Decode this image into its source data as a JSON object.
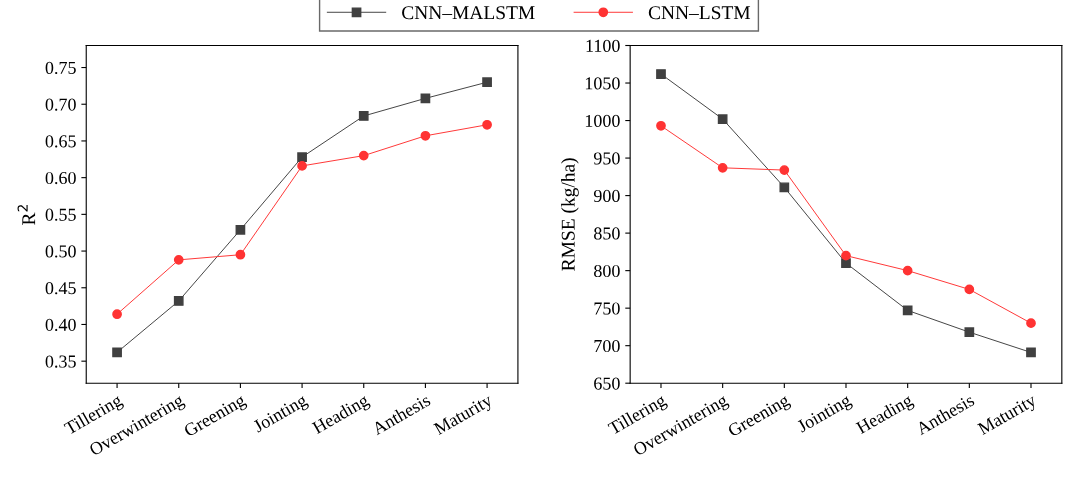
{
  "chart_data": [
    {
      "type": "line",
      "ylabel": "R$^{2}$",
      "categories": [
        "Tillering",
        "Overwintering",
        "Greening",
        "Jointing",
        "Heading",
        "Anthesis",
        "Maturity"
      ],
      "ylim": [
        0.32,
        0.78
      ],
      "yticks": [
        {
          "value": 0.35,
          "label": "0.35"
        },
        {
          "value": 0.4,
          "label": "0.40"
        },
        {
          "value": 0.45,
          "label": "0.45"
        },
        {
          "value": 0.5,
          "label": "0.50"
        },
        {
          "value": 0.55,
          "label": "0.55"
        },
        {
          "value": 0.6,
          "label": "0.60"
        },
        {
          "value": 0.65,
          "label": "0.65"
        },
        {
          "value": 0.7,
          "label": "0.70"
        },
        {
          "value": 0.75,
          "label": "0.75"
        }
      ],
      "legend": "top",
      "series": [
        {
          "name": "CNN–MALSTM",
          "color": "#404040",
          "marker": "square",
          "values": [
            0.362,
            0.432,
            0.529,
            0.628,
            0.684,
            0.708,
            0.73
          ]
        },
        {
          "name": "CNN–LSTM",
          "color": "#ff3333",
          "marker": "circle",
          "values": [
            0.414,
            0.488,
            0.495,
            0.616,
            0.63,
            0.657,
            0.672
          ]
        }
      ]
    },
    {
      "type": "line",
      "ylabel": "RMSE (kg/ha)",
      "categories": [
        "Tillering",
        "Overwintering",
        "Greening",
        "Jointing",
        "Heading",
        "Anthesis",
        "Maturity"
      ],
      "ylim": [
        650,
        1100
      ],
      "yticks": [
        650,
        700,
        750,
        800,
        850,
        900,
        950,
        1000,
        1050,
        1100
      ],
      "legend": "top",
      "series": [
        {
          "name": "CNN–MALSTM",
          "color": "#404040",
          "marker": "square",
          "values": [
            1062,
            1002,
            911,
            810,
            747,
            718,
            691
          ]
        },
        {
          "name": "CNN–LSTM",
          "color": "#ff3333",
          "marker": "circle",
          "values": [
            993,
            937,
            934,
            820,
            800,
            775,
            730
          ]
        }
      ]
    }
  ]
}
